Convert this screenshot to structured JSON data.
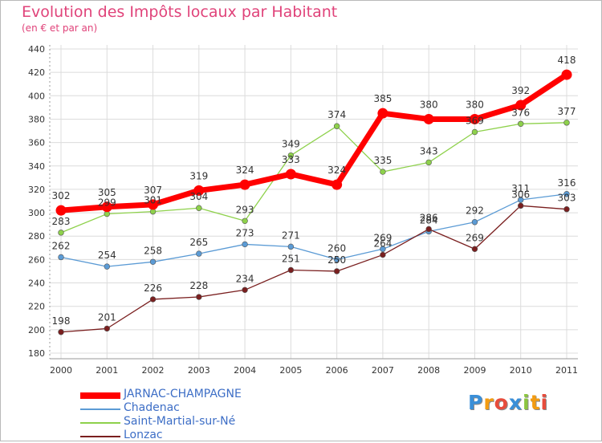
{
  "title": "Evolution des Impôts locaux par Habitant",
  "subtitle": "(en € et par an)",
  "chart_data": {
    "type": "line",
    "title": "Evolution des Impôts locaux par Habitant",
    "subtitle": "(en € et par an)",
    "xlabel": "",
    "ylabel": "",
    "x": [
      "2000",
      "2001",
      "2002",
      "2003",
      "2004",
      "2005",
      "2006",
      "2007",
      "2008",
      "2009",
      "2010",
      "2011"
    ],
    "ylim": [
      180,
      440
    ],
    "yticks": [
      180,
      200,
      220,
      240,
      260,
      280,
      300,
      320,
      340,
      360,
      380,
      400,
      420,
      440
    ],
    "grid": true,
    "legend": "bottom-left",
    "series": [
      {
        "name": "JARNAC-CHAMPAGNE",
        "color": "#ff0000",
        "values": [
          302,
          305,
          307,
          319,
          324,
          333,
          324,
          385,
          380,
          380,
          392,
          418
        ]
      },
      {
        "name": "Chadenac",
        "color": "#5b9bd5",
        "values": [
          262,
          254,
          258,
          265,
          273,
          271,
          260,
          269,
          284,
          292,
          311,
          316
        ]
      },
      {
        "name": "Saint-Martial-sur-Né",
        "color": "#8ed14b",
        "values": [
          283,
          299,
          301,
          304,
          293,
          349,
          374,
          335,
          343,
          369,
          376,
          377
        ]
      },
      {
        "name": "Lonzac",
        "color": "#7a1f1f",
        "values": [
          198,
          201,
          226,
          228,
          234,
          251,
          250,
          264,
          286,
          269,
          306,
          303
        ]
      }
    ]
  },
  "logo": {
    "text": "Proxiti",
    "letter_colors": [
      "#3a8fd8",
      "#f39c12",
      "#e74c3c",
      "#3a8fd8",
      "#8cc63f",
      "#f39c12",
      "#e74c3c"
    ]
  }
}
